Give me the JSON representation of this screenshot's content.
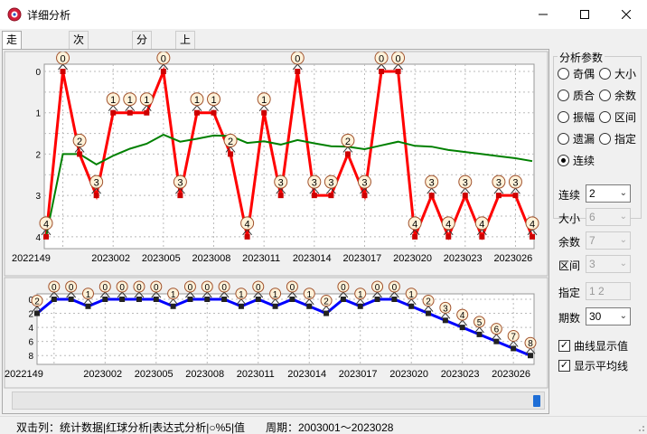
{
  "window": {
    "title": "详细分析",
    "icon": "app-icon",
    "controls": [
      "minimize-icon",
      "maximize-icon",
      "close-icon"
    ]
  },
  "tabs": [
    {
      "label": "走势曲线图",
      "active": true
    },
    {
      "label": "次数柱形图",
      "active": false
    },
    {
      "label": "分布图",
      "active": false
    },
    {
      "label": "上下关系分析",
      "active": false
    }
  ],
  "side": {
    "group_title": "分析参数",
    "radios": [
      {
        "label": "奇偶",
        "checked": false
      },
      {
        "label": "大小",
        "checked": false
      },
      {
        "label": "质合",
        "checked": false
      },
      {
        "label": "余数",
        "checked": false
      },
      {
        "label": "振幅",
        "checked": false
      },
      {
        "label": "区间",
        "checked": false
      },
      {
        "label": "遗漏",
        "checked": false
      },
      {
        "label": "指定",
        "checked": false
      },
      {
        "label": "连续",
        "checked": true
      }
    ],
    "fields": [
      {
        "label": "连续",
        "value": "2",
        "enabled": true
      },
      {
        "label": "大小",
        "value": "6",
        "enabled": false
      },
      {
        "label": "余数",
        "value": "7",
        "enabled": false
      },
      {
        "label": "区间",
        "value": "3",
        "enabled": false
      }
    ],
    "zhiding": {
      "label": "指定",
      "value": "1 2"
    },
    "qishu": {
      "label": "期数",
      "value": "30"
    },
    "checks": [
      {
        "label": "曲线显示值",
        "checked": true
      },
      {
        "label": "显示平均线",
        "checked": true
      }
    ]
  },
  "status": {
    "left": "双击列：统计数据|红球分析|表达式分析|○%5|值",
    "right": "周期：2003001～2023028"
  },
  "colors": {
    "series": "#ff0000",
    "average": "#008000",
    "lower_series": "#0000ff",
    "plot_bg": "#ffffff",
    "grid": "#bbbbbb",
    "marker": "#cc0000",
    "bubble": "#fff2d9"
  },
  "chart_data": [
    {
      "type": "line",
      "x_tick_labels": [
        "2022149",
        "2023002",
        "2023005",
        "2023008",
        "2023011",
        "2023014",
        "2023017",
        "2023020",
        "2023023",
        "2023026"
      ],
      "ylim": [
        0,
        4.2
      ],
      "y_ticks": [
        0,
        0.5,
        1,
        1.5,
        2,
        2.5,
        3,
        3.5,
        4
      ],
      "grid": true,
      "series": [
        {
          "values": [
            4,
            0,
            2,
            3,
            1,
            1,
            1,
            0,
            3,
            1,
            1,
            2,
            4,
            1,
            3,
            0,
            3,
            3,
            2,
            3,
            0,
            0,
            4,
            3,
            4,
            3,
            4,
            3,
            3,
            4
          ]
        },
        {
          "values": [
            4,
            2,
            2,
            2.25,
            2.04,
            1.87,
            1.75,
            1.53,
            1.7,
            1.63,
            1.55,
            1.56,
            1.73,
            1.69,
            1.77,
            1.66,
            1.74,
            1.81,
            1.82,
            1.88,
            1.79,
            1.7,
            1.8,
            1.82,
            1.9,
            1.95,
            2,
            2.05,
            2.1,
            2.17
          ]
        }
      ]
    },
    {
      "type": "line",
      "x_tick_labels": [
        "2022149",
        "2023002",
        "2023005",
        "2023008",
        "2023011",
        "2023014",
        "2023017",
        "2023020",
        "2023023",
        "2023026"
      ],
      "ylim": [
        0,
        9
      ],
      "y_ticks": [
        0,
        2,
        4,
        6,
        8
      ],
      "grid": true,
      "series": [
        {
          "values": [
            2,
            0,
            0,
            1,
            0,
            0,
            0,
            0,
            1,
            0,
            0,
            0,
            1,
            0,
            1,
            0,
            1,
            2,
            0,
            1,
            0,
            0,
            1,
            2,
            3,
            4,
            5,
            6,
            7,
            8
          ]
        }
      ]
    }
  ]
}
